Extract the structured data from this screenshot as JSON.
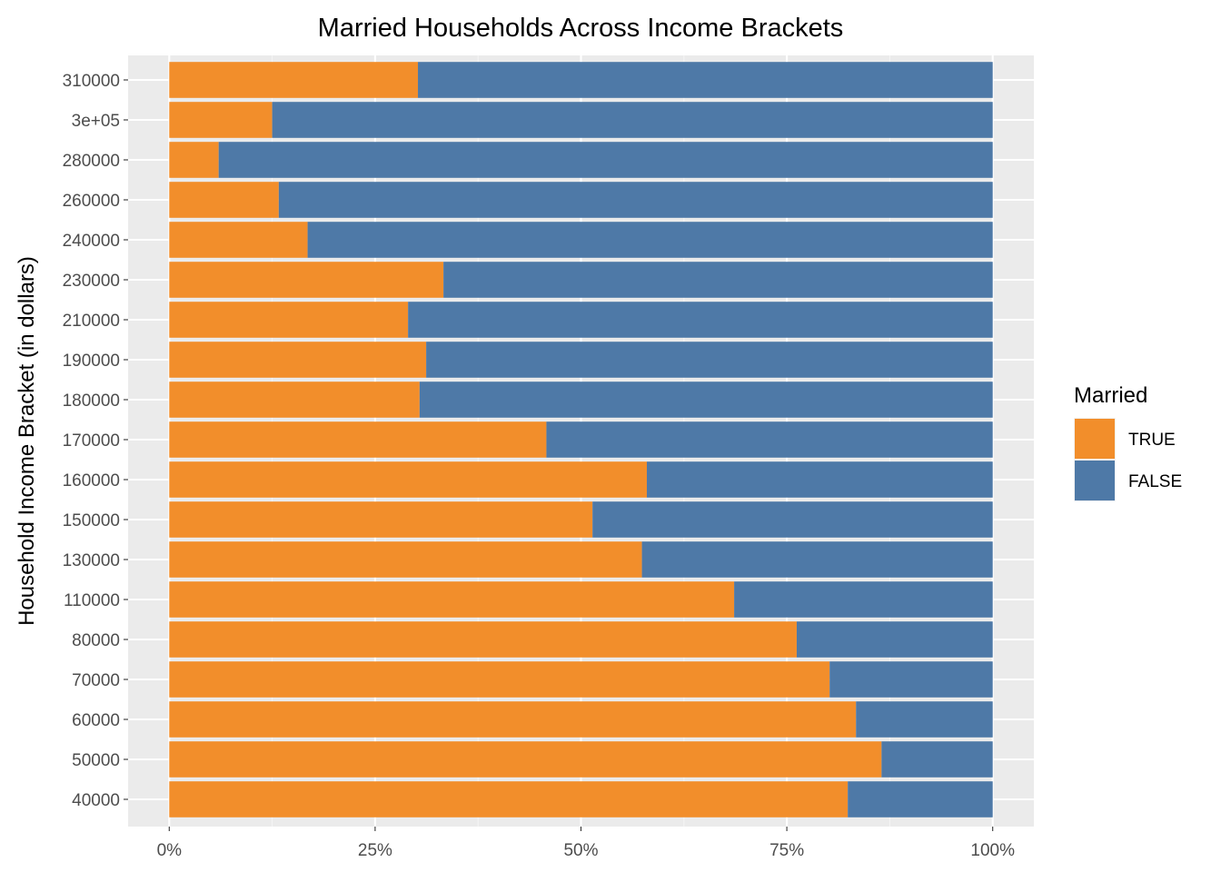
{
  "chart_data": {
    "type": "bar",
    "orientation": "horizontal",
    "stacked": "percent",
    "title": "Married Households Across Income Brackets",
    "xlabel": "",
    "ylabel": "Household Income Bracket (in dollars)",
    "xlim": [
      0,
      100
    ],
    "x_ticks": [
      "0%",
      "25%",
      "50%",
      "75%",
      "100%"
    ],
    "categories": [
      "310000",
      "3e+05",
      "280000",
      "260000",
      "240000",
      "230000",
      "210000",
      "190000",
      "180000",
      "170000",
      "160000",
      "150000",
      "130000",
      "110000",
      "80000",
      "70000",
      "60000",
      "50000",
      "40000"
    ],
    "series": [
      {
        "name": "TRUE",
        "color": "#f28e2b",
        "values": [
          30.2,
          12.5,
          6.0,
          13.3,
          16.8,
          33.3,
          29.0,
          31.2,
          30.4,
          45.8,
          58.0,
          51.4,
          57.4,
          68.6,
          76.2,
          80.2,
          83.4,
          86.5,
          82.4
        ]
      },
      {
        "name": "FALSE",
        "color": "#4e79a7",
        "values": [
          69.8,
          87.5,
          94.0,
          86.7,
          83.2,
          66.7,
          71.0,
          68.8,
          69.6,
          54.2,
          42.0,
          48.6,
          42.6,
          31.4,
          23.8,
          19.8,
          16.6,
          13.5,
          17.6
        ]
      }
    ],
    "legend": {
      "title": "Married",
      "position": "right",
      "items": [
        "TRUE",
        "FALSE"
      ]
    },
    "grid": true,
    "panel_background": "#ebebeb"
  }
}
